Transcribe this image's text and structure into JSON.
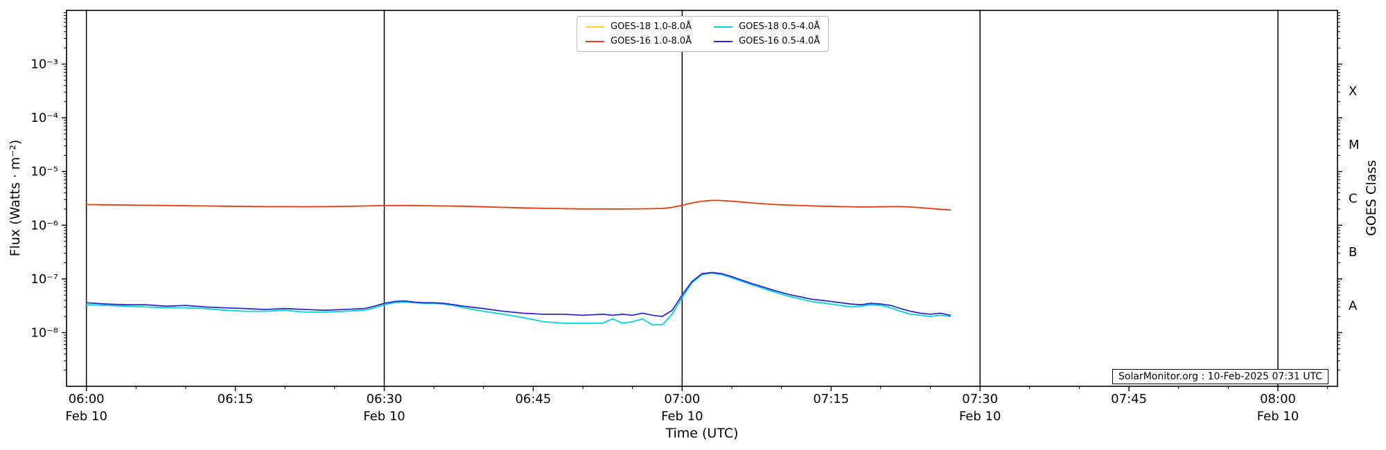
{
  "figure": {
    "xlabel": "Time (UTC)",
    "ylabel_left": "Flux (Watts · m⁻²)",
    "ylabel_right": "GOES Class",
    "watermark": "SolarMonitor.org : 10-Feb-2025 07:31 UTC",
    "background": "#ffffff",
    "spine_color": "#000000",
    "day_line_color": "#000000"
  },
  "axes": {
    "x_major_ticks": [
      {
        "t": 0,
        "label": "06:00",
        "date": "Feb 10"
      },
      {
        "t": 15,
        "label": "06:15"
      },
      {
        "t": 30,
        "label": "06:30",
        "date": "Feb 10"
      },
      {
        "t": 45,
        "label": "06:45"
      },
      {
        "t": 60,
        "label": "07:00",
        "date": "Feb 10"
      },
      {
        "t": 75,
        "label": "07:15"
      },
      {
        "t": 90,
        "label": "07:30",
        "date": "Feb 10"
      },
      {
        "t": 105,
        "label": "07:45"
      },
      {
        "t": 120,
        "label": "08:00",
        "date": "Feb 10"
      }
    ],
    "x_minor_step_minutes": 5,
    "y_major_ticks": [
      {
        "exp": -3,
        "label": "10⁻³"
      },
      {
        "exp": -4,
        "label": "10⁻⁴"
      },
      {
        "exp": -5,
        "label": "10⁻⁵"
      },
      {
        "exp": -6,
        "label": "10⁻⁶"
      },
      {
        "exp": -7,
        "label": "10⁻⁷"
      },
      {
        "exp": -8,
        "label": "10⁻⁸"
      }
    ],
    "goes_classes": [
      {
        "label": "X",
        "flux": 0.000316
      },
      {
        "label": "M",
        "flux": 3.16e-05
      },
      {
        "label": "C",
        "flux": 3.16e-06
      },
      {
        "label": "B",
        "flux": 3.16e-07
      },
      {
        "label": "A",
        "flux": 3.16e-08
      }
    ]
  },
  "chart_data": {
    "type": "line",
    "title": "",
    "xlabel": "Time (UTC)",
    "ylabel": "Flux (Watts · m⁻²)",
    "x_unit": "minutes after 06:00 UTC, 10-Feb-2025",
    "xlim": [
      -2,
      126
    ],
    "ylim": [
      1e-09,
      0.01
    ],
    "yscale": "log",
    "grid": false,
    "legend_position": "upper center",
    "day_boundary_lines_t": [
      0,
      30,
      60,
      90,
      120
    ],
    "series": [
      {
        "name": "GOES-18 1.0-8.0Å",
        "color": "#ffd21f",
        "x": [
          0,
          2,
          4,
          6,
          8,
          10,
          12,
          14,
          16,
          18,
          20,
          22,
          24,
          26,
          28,
          30,
          32,
          34,
          36,
          38,
          40,
          42,
          44,
          46,
          48,
          50,
          52,
          54,
          56,
          58,
          59,
          60,
          61,
          62,
          63,
          64,
          65,
          66,
          67,
          68,
          69,
          70,
          72,
          74,
          76,
          78,
          80,
          81,
          82,
          83,
          84,
          85,
          86,
          87
        ],
        "y": [
          2.42e-06,
          2.4e-06,
          2.38e-06,
          2.35e-06,
          2.33e-06,
          2.3e-06,
          2.28e-06,
          2.26e-06,
          2.24e-06,
          2.22e-06,
          2.22e-06,
          2.21e-06,
          2.22e-06,
          2.24e-06,
          2.28e-06,
          2.32e-06,
          2.33e-06,
          2.31e-06,
          2.28e-06,
          2.26e-06,
          2.2e-06,
          2.15e-06,
          2.1e-06,
          2.06e-06,
          2.03e-06,
          2.01e-06,
          2e-06,
          2e-06,
          2.02e-06,
          2.05e-06,
          2.15e-06,
          2.35e-06,
          2.6e-06,
          2.8e-06,
          2.9e-06,
          2.88e-06,
          2.8e-06,
          2.7e-06,
          2.6e-06,
          2.52e-06,
          2.45e-06,
          2.4e-06,
          2.32e-06,
          2.26e-06,
          2.22e-06,
          2.18e-06,
          2.2e-06,
          2.22e-06,
          2.22e-06,
          2.18e-06,
          2.12e-06,
          2.05e-06,
          1.98e-06,
          1.92e-06
        ]
      },
      {
        "name": "GOES-16 1.0-8.0Å",
        "color": "#e8391c",
        "x": [
          0,
          2,
          4,
          6,
          8,
          10,
          12,
          14,
          16,
          18,
          20,
          22,
          24,
          26,
          28,
          30,
          32,
          34,
          36,
          38,
          40,
          42,
          44,
          46,
          48,
          50,
          52,
          54,
          56,
          58,
          59,
          60,
          61,
          62,
          63,
          64,
          65,
          66,
          67,
          68,
          69,
          70,
          72,
          74,
          76,
          78,
          80,
          81,
          82,
          83,
          84,
          85,
          86,
          87
        ],
        "y": [
          2.42e-06,
          2.4e-06,
          2.38e-06,
          2.35e-06,
          2.33e-06,
          2.3e-06,
          2.28e-06,
          2.26e-06,
          2.24e-06,
          2.22e-06,
          2.22e-06,
          2.21e-06,
          2.22e-06,
          2.24e-06,
          2.28e-06,
          2.32e-06,
          2.33e-06,
          2.31e-06,
          2.28e-06,
          2.26e-06,
          2.2e-06,
          2.15e-06,
          2.1e-06,
          2.06e-06,
          2.03e-06,
          2.01e-06,
          2e-06,
          2e-06,
          2.02e-06,
          2.05e-06,
          2.15e-06,
          2.35e-06,
          2.6e-06,
          2.8e-06,
          2.9e-06,
          2.88e-06,
          2.8e-06,
          2.7e-06,
          2.6e-06,
          2.52e-06,
          2.45e-06,
          2.4e-06,
          2.32e-06,
          2.26e-06,
          2.22e-06,
          2.18e-06,
          2.2e-06,
          2.22e-06,
          2.22e-06,
          2.18e-06,
          2.12e-06,
          2.05e-06,
          1.98e-06,
          1.92e-06
        ]
      },
      {
        "name": "GOES-18 0.5-4.0Å",
        "color": "#00d4dd",
        "x": [
          0,
          2,
          4,
          6,
          8,
          10,
          12,
          14,
          16,
          18,
          20,
          22,
          24,
          26,
          28,
          29,
          30,
          31,
          32,
          33,
          34,
          35,
          36,
          37,
          38,
          40,
          42,
          44,
          46,
          48,
          50,
          52,
          53,
          54,
          55,
          56,
          57,
          58,
          59,
          60,
          61,
          62,
          63,
          64,
          65,
          66,
          67,
          68,
          69,
          70,
          71,
          72,
          73,
          74,
          75,
          76,
          77,
          78,
          79,
          80,
          81,
          82,
          83,
          84,
          85,
          86,
          87
        ],
        "y": [
          3.3e-08,
          3.2e-08,
          3.1e-08,
          3e-08,
          2.9e-08,
          2.9e-08,
          2.8e-08,
          2.6e-08,
          2.5e-08,
          2.5e-08,
          2.6e-08,
          2.4e-08,
          2.4e-08,
          2.5e-08,
          2.6e-08,
          2.9e-08,
          3.3e-08,
          3.6e-08,
          3.7e-08,
          3.6e-08,
          3.5e-08,
          3.5e-08,
          3.4e-08,
          3.2e-08,
          2.9e-08,
          2.5e-08,
          2.2e-08,
          1.9e-08,
          1.6e-08,
          1.5e-08,
          1.5e-08,
          1.5e-08,
          1.8e-08,
          1.5e-08,
          1.6e-08,
          1.8e-08,
          1.4e-08,
          1.4e-08,
          2.2e-08,
          4.5e-08,
          8.5e-08,
          1.2e-07,
          1.28e-07,
          1.2e-07,
          1.05e-07,
          9e-08,
          7.8e-08,
          6.8e-08,
          5.9e-08,
          5.2e-08,
          4.6e-08,
          4.2e-08,
          3.8e-08,
          3.6e-08,
          3.4e-08,
          3.2e-08,
          3e-08,
          3.1e-08,
          3.3e-08,
          3.2e-08,
          2.9e-08,
          2.5e-08,
          2.2e-08,
          2.1e-08,
          2e-08,
          2.1e-08,
          2e-08
        ]
      },
      {
        "name": "GOES-16 0.5-4.0Å",
        "color": "#2929d6",
        "x": [
          0,
          2,
          4,
          6,
          8,
          10,
          12,
          14,
          16,
          18,
          20,
          22,
          24,
          26,
          28,
          29,
          30,
          31,
          32,
          33,
          34,
          35,
          36,
          37,
          38,
          40,
          42,
          44,
          46,
          48,
          50,
          52,
          53,
          54,
          55,
          56,
          57,
          58,
          59,
          60,
          61,
          62,
          63,
          64,
          65,
          66,
          67,
          68,
          69,
          70,
          71,
          72,
          73,
          74,
          75,
          76,
          77,
          78,
          79,
          80,
          81,
          82,
          83,
          84,
          85,
          86,
          87
        ],
        "y": [
          3.6e-08,
          3.4e-08,
          3.3e-08,
          3.3e-08,
          3.1e-08,
          3.2e-08,
          3e-08,
          2.9e-08,
          2.8e-08,
          2.7e-08,
          2.8e-08,
          2.7e-08,
          2.6e-08,
          2.7e-08,
          2.8e-08,
          3.1e-08,
          3.5e-08,
          3.8e-08,
          3.9e-08,
          3.7e-08,
          3.6e-08,
          3.6e-08,
          3.5e-08,
          3.3e-08,
          3.1e-08,
          2.8e-08,
          2.5e-08,
          2.3e-08,
          2.2e-08,
          2.2e-08,
          2.1e-08,
          2.2e-08,
          2.1e-08,
          2.2e-08,
          2.1e-08,
          2.3e-08,
          2.1e-08,
          2e-08,
          2.6e-08,
          5e-08,
          9e-08,
          1.25e-07,
          1.32e-07,
          1.25e-07,
          1.1e-07,
          9.5e-08,
          8.2e-08,
          7.2e-08,
          6.3e-08,
          5.6e-08,
          5e-08,
          4.6e-08,
          4.2e-08,
          4e-08,
          3.8e-08,
          3.6e-08,
          3.4e-08,
          3.3e-08,
          3.5e-08,
          3.4e-08,
          3.2e-08,
          2.8e-08,
          2.5e-08,
          2.3e-08,
          2.2e-08,
          2.3e-08,
          2.1e-08
        ]
      }
    ]
  }
}
